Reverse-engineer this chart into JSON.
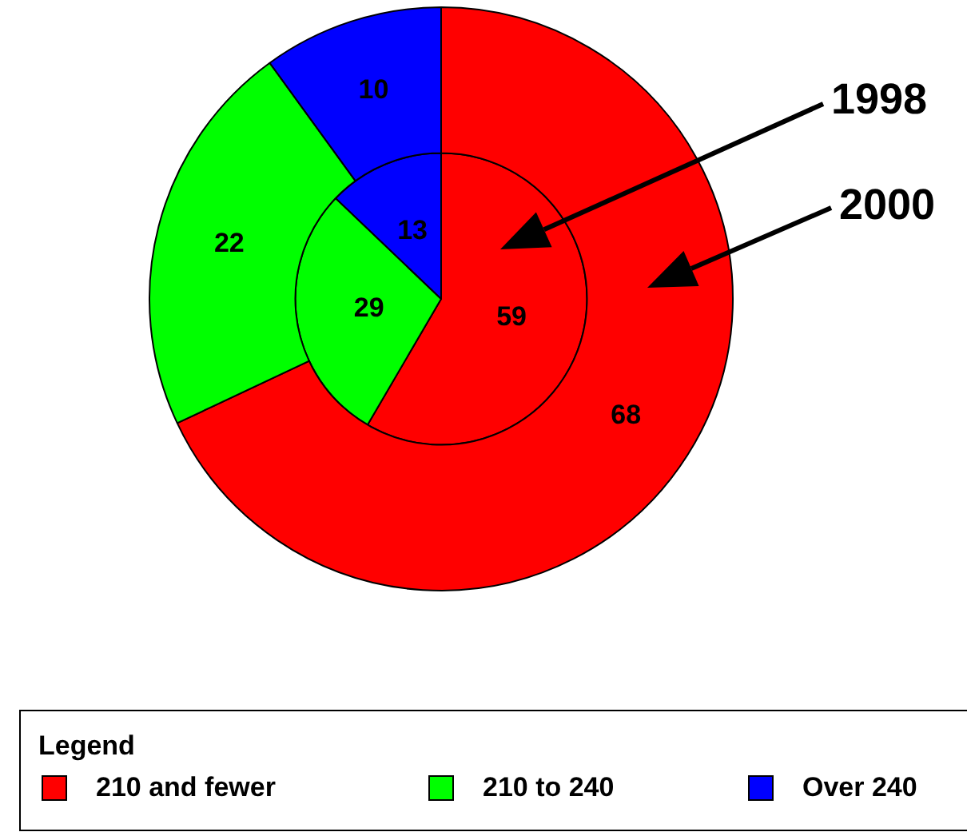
{
  "chart_data": {
    "type": "pie",
    "categories": [
      "210 and fewer",
      "210 to 240",
      "Over 240"
    ],
    "colors": [
      "#ff0000",
      "#00ff00",
      "#0000ff"
    ],
    "series": [
      {
        "name": "2000",
        "values": [
          68,
          22,
          10
        ]
      },
      {
        "name": "1998",
        "values": [
          59,
          29,
          13
        ]
      }
    ],
    "data_labels": true,
    "legend": "bottom",
    "legend_title": "Legend"
  }
}
